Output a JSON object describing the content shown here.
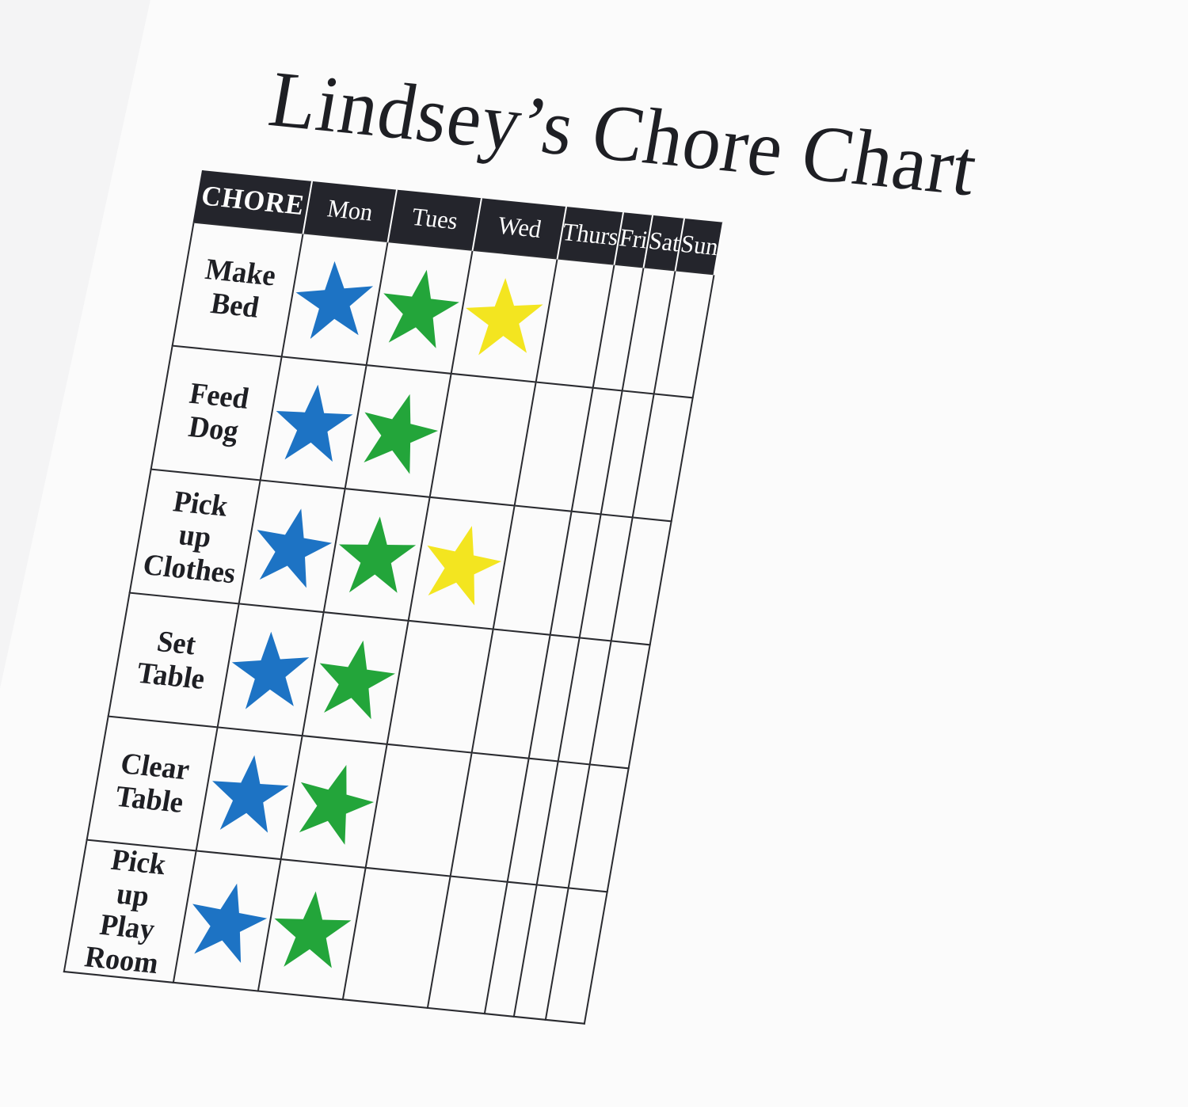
{
  "title": "Lindsey’s Chore Chart",
  "header": {
    "chore": "CHORE",
    "days": [
      "Mon",
      "Tues",
      "Wed",
      "Thurs",
      "Fri",
      "Sat",
      "Sun"
    ]
  },
  "colors": {
    "blue": "#1d73c4",
    "green": "#23a53a",
    "yellow": "#f3e520",
    "header_bg": "#24252c"
  },
  "rows": [
    {
      "chore": "Make Bed",
      "stars": [
        "blue",
        "green",
        "yellow"
      ]
    },
    {
      "chore": "Feed Dog",
      "stars": [
        "blue",
        "green"
      ]
    },
    {
      "chore": "Pick up Clothes",
      "stars": [
        "blue",
        "green",
        "yellow"
      ]
    },
    {
      "chore": "Set Table",
      "stars": [
        "blue",
        "green"
      ]
    },
    {
      "chore": "Clear Table",
      "stars": [
        "blue",
        "green"
      ]
    },
    {
      "chore": "Pick up Play Room",
      "stars": [
        "blue",
        "green"
      ]
    }
  ]
}
